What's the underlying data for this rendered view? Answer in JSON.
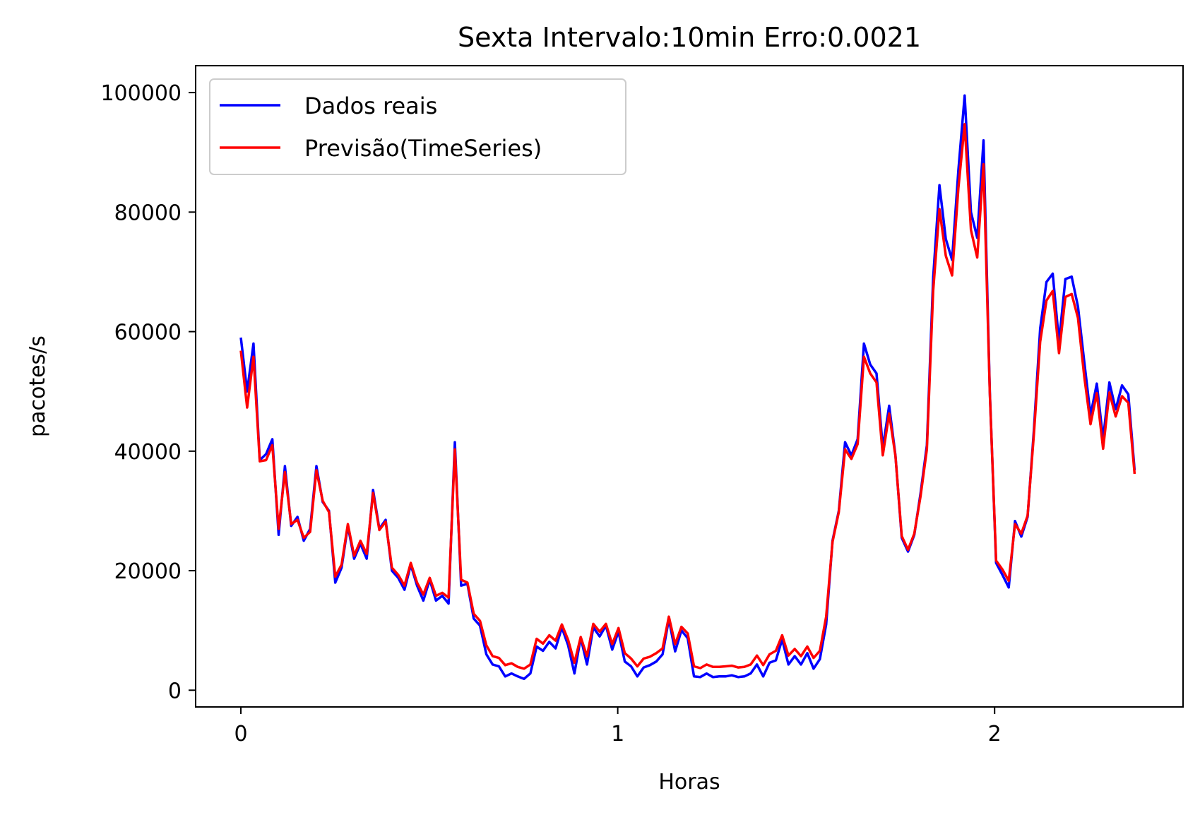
{
  "chart_data": {
    "type": "line",
    "title": "Sexta Intervalo:10min Erro:0.0021",
    "xlabel": "Horas",
    "ylabel": "pacotes/s",
    "xlim": [
      -0.12,
      2.5
    ],
    "ylim": [
      -2800,
      104500
    ],
    "xticks": [
      0,
      1,
      2
    ],
    "xtick_labels": [
      "0",
      "1",
      "2"
    ],
    "yticks": [
      0,
      20000,
      40000,
      60000,
      80000,
      100000
    ],
    "ytick_labels": [
      "0",
      "20000",
      "40000",
      "60000",
      "80000",
      "100000"
    ],
    "grid": false,
    "legend": "upper-left",
    "x_start": 0,
    "x_step": 0.0167,
    "series": [
      {
        "name": "Dados reais",
        "color": "#0000ff",
        "values": [
          59000,
          50000,
          58000,
          38500,
          39500,
          42000,
          26000,
          37500,
          27500,
          29000,
          25000,
          27000,
          37500,
          31500,
          30000,
          18000,
          20500,
          27500,
          22000,
          24500,
          22000,
          33500,
          27000,
          28500,
          20000,
          18800,
          16800,
          21000,
          17500,
          15000,
          18500,
          15000,
          15800,
          14500,
          41500,
          17500,
          17800,
          12000,
          10800,
          6000,
          4300,
          4000,
          2300,
          2800,
          2300,
          1900,
          2800,
          7300,
          6600,
          8100,
          7000,
          10500,
          7500,
          2800,
          8800,
          4300,
          10500,
          9000,
          10800,
          6800,
          9800,
          4800,
          4000,
          2300,
          3800,
          4200,
          4800,
          6000,
          11900,
          6500,
          10000,
          8700,
          2300,
          2200,
          2800,
          2200,
          2300,
          2300,
          2500,
          2200,
          2300,
          2800,
          4300,
          2300,
          4600,
          5000,
          8500,
          4300,
          5700,
          4300,
          6200,
          3600,
          5200,
          11000,
          25000,
          30000,
          41500,
          39300,
          42000,
          58000,
          54500,
          53000,
          40500,
          47600,
          39300,
          25500,
          23200,
          26000,
          33000,
          41000,
          69000,
          84500,
          75500,
          72000,
          87000,
          99500,
          80000,
          75700,
          92000,
          50000,
          21300,
          19300,
          17200,
          28300,
          25700,
          29000,
          43500,
          60500,
          68300,
          69700,
          58300,
          68800,
          69200,
          64200,
          55000,
          46000,
          51300,
          42000,
          51500,
          47000,
          51000,
          49500,
          36800
        ]
      },
      {
        "name": "Previsão(TimeSeries)",
        "color": "#ff0000",
        "values": [
          56800,
          47300,
          55800,
          38300,
          38500,
          41000,
          27000,
          36500,
          27800,
          28500,
          25500,
          26500,
          36800,
          31700,
          29800,
          19000,
          21000,
          27800,
          22500,
          25000,
          22800,
          33000,
          26800,
          28200,
          20500,
          19300,
          17500,
          21300,
          18000,
          16000,
          18800,
          15800,
          16300,
          15500,
          40300,
          18500,
          18000,
          12800,
          11600,
          7500,
          5700,
          5400,
          4200,
          4500,
          3900,
          3600,
          4300,
          8600,
          7800,
          9200,
          8300,
          11000,
          8400,
          4600,
          8900,
          5700,
          11100,
          9800,
          11100,
          7700,
          10400,
          6200,
          5300,
          4000,
          5300,
          5600,
          6200,
          7000,
          12300,
          7700,
          10600,
          9500,
          4000,
          3700,
          4300,
          3900,
          3900,
          4000,
          4100,
          3800,
          3900,
          4300,
          5800,
          4200,
          6000,
          6600,
          9200,
          5800,
          6900,
          5700,
          7300,
          5400,
          6600,
          12300,
          24800,
          29800,
          40300,
          38700,
          41200,
          55800,
          53000,
          51500,
          39300,
          46300,
          39200,
          25800,
          23500,
          26200,
          32500,
          40300,
          66800,
          80500,
          72700,
          69400,
          84000,
          94700,
          77000,
          72400,
          88000,
          49800,
          21700,
          20200,
          18300,
          27800,
          26200,
          29200,
          42800,
          58300,
          65200,
          66800,
          56400,
          65800,
          66300,
          62300,
          52500,
          44500,
          49700,
          40400,
          49800,
          45800,
          49200,
          48100,
          36200
        ]
      }
    ]
  }
}
